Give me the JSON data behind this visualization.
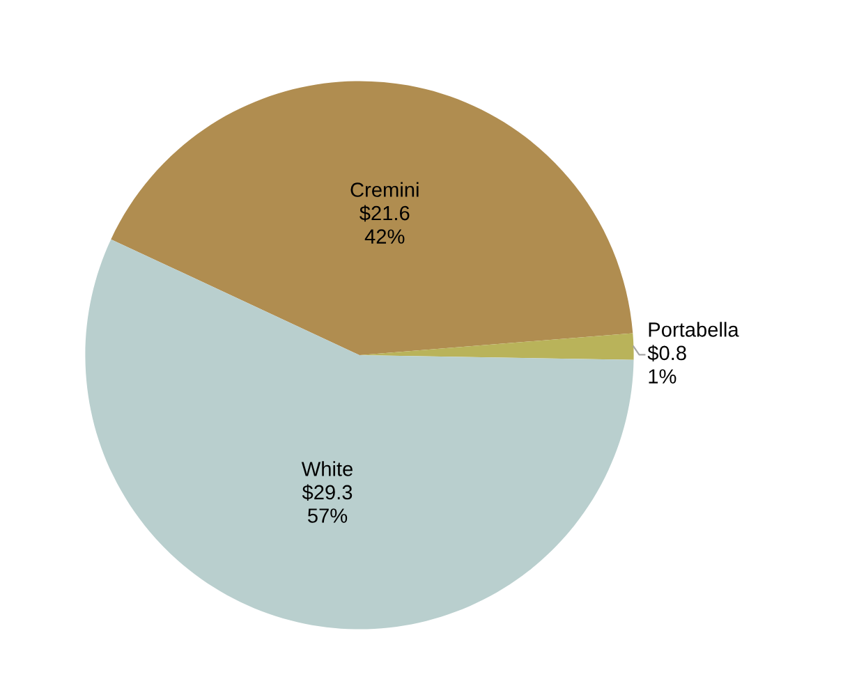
{
  "chart_data": {
    "type": "pie",
    "categories": [
      "Cremini",
      "Portabella",
      "White"
    ],
    "values": [
      21.6,
      0.8,
      29.3
    ],
    "colors": [
      "#b08d50",
      "#b9b35a",
      "#b9cfce"
    ],
    "value_labels": [
      "$21.6\n42%",
      "$0.8\n1%",
      "$29.3\n57%"
    ]
  }
}
